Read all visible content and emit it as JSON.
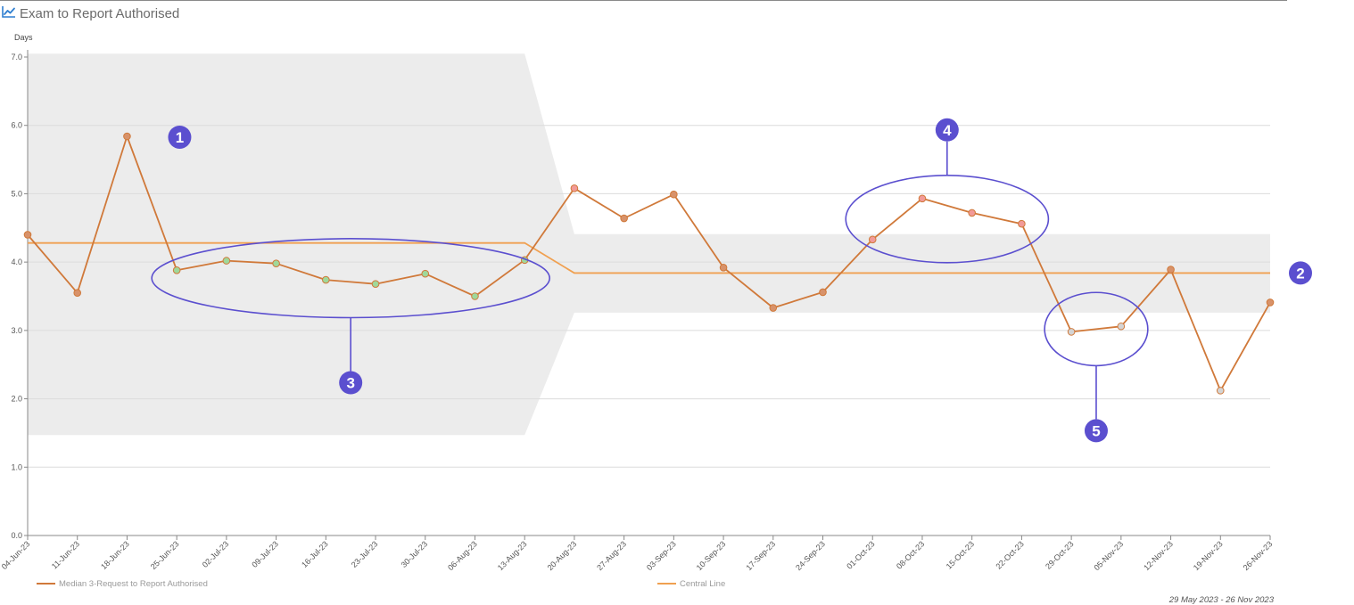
{
  "header": {
    "title": "Exam to Report Authorised",
    "icon": "line-chart-icon"
  },
  "date_range": "29 May 2023 - 26 Nov 2023",
  "colors": {
    "series": "#d0793a",
    "central": "#f0a050",
    "limits_band": "#ececec",
    "marker_normal": "#d8926a",
    "marker_below": "#9fd89a",
    "marker_above": "#f29a98",
    "marker_low": "#d4d4d4",
    "annotation": "#5b4fcf",
    "grid": "#dcdcdc"
  },
  "chart_data": {
    "type": "line",
    "ylabel": "Days",
    "ylim": [
      0,
      7
    ],
    "yticks": [
      "0.0",
      "1.0",
      "2.0",
      "3.0",
      "4.0",
      "5.0",
      "6.0",
      "7.0"
    ],
    "categories": [
      "04-Jun-23",
      "11-Jun-23",
      "18-Jun-23",
      "25-Jun-23",
      "02-Jul-23",
      "09-Jul-23",
      "16-Jul-23",
      "23-Jul-23",
      "30-Jul-23",
      "06-Aug-23",
      "13-Aug-23",
      "20-Aug-23",
      "27-Aug-23",
      "03-Sep-23",
      "10-Sep-23",
      "17-Sep-23",
      "24-Sep-23",
      "01-Oct-23",
      "08-Oct-23",
      "15-Oct-23",
      "22-Oct-23",
      "29-Oct-23",
      "05-Nov-23",
      "12-Nov-23",
      "19-Nov-23",
      "26-Nov-23"
    ],
    "series": [
      {
        "name": "Median 3-Request to Report Authorised",
        "values": [
          4.4,
          3.55,
          5.84,
          3.88,
          4.02,
          3.98,
          3.74,
          3.68,
          3.83,
          3.5,
          4.03,
          5.08,
          4.64,
          4.99,
          3.92,
          3.33,
          3.56,
          4.33,
          4.93,
          4.72,
          4.56,
          2.98,
          3.06,
          3.89,
          2.12,
          3.41
        ],
        "marker_states": [
          "normal",
          "normal",
          "normal",
          "below",
          "below",
          "below",
          "below",
          "below",
          "below",
          "below",
          "below",
          "above",
          "normal",
          "normal",
          "normal",
          "normal",
          "normal",
          "above",
          "above",
          "above",
          "above",
          "low",
          "low",
          "normal",
          "low",
          "normal"
        ]
      }
    ],
    "central_line": {
      "name": "Central Line",
      "segments": [
        {
          "from": "04-Jun-23",
          "to": "13-Aug-23",
          "value": 4.28
        },
        {
          "from": "20-Aug-23",
          "to": "26-Nov-23",
          "value": 3.84
        }
      ]
    },
    "control_limits": {
      "segments": [
        {
          "from": "04-Jun-23",
          "to": "13-Aug-23",
          "lower": 1.47,
          "upper": 7.05
        },
        {
          "from": "20-Aug-23",
          "to": "26-Nov-23",
          "lower": 3.26,
          "upper": 4.41
        }
      ]
    },
    "legend": [
      "Median 3-Request to Report Authorised",
      "Central Line"
    ],
    "grid": true,
    "annotations": [
      {
        "label": "1"
      },
      {
        "label": "2"
      },
      {
        "label": "3",
        "category_span": [
          "25-Jun-23",
          "13-Aug-23"
        ]
      },
      {
        "label": "4",
        "category_span": [
          "01-Oct-23",
          "22-Oct-23"
        ]
      },
      {
        "label": "5",
        "category_span": [
          "29-Oct-23",
          "05-Nov-23"
        ]
      }
    ]
  }
}
